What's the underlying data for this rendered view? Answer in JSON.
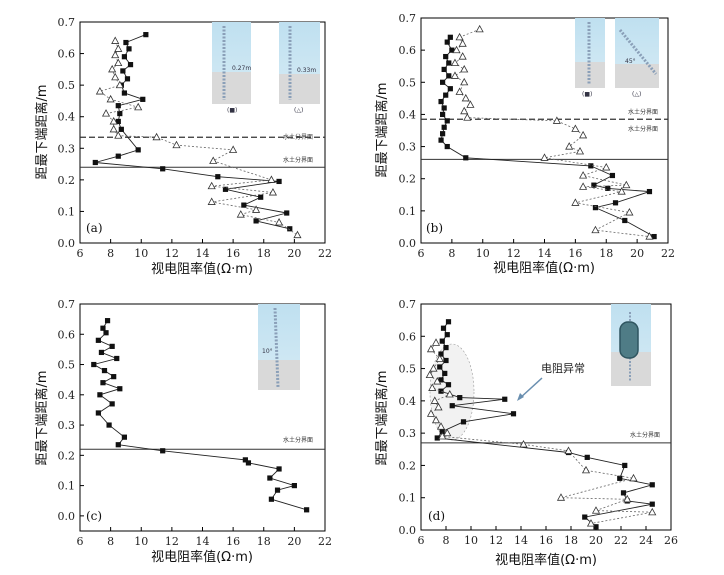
{
  "figure": {
    "x_axis_label": "视电阻率值(Ω·m)",
    "y_axis_label": "距最下端距离/m",
    "interface_label": "水土分界面"
  },
  "chart_data": [
    {
      "type": "line",
      "panel_label": "(a)",
      "xlim": [
        6,
        22
      ],
      "ylim": [
        0,
        0.7
      ],
      "xticks": [
        6,
        8,
        10,
        12,
        14,
        16,
        18,
        20,
        22
      ],
      "yticks": [
        0.0,
        0.1,
        0.2,
        0.3,
        0.4,
        0.5,
        0.6,
        0.7
      ],
      "xlabel": "视电阻率值(Ω·m)",
      "ylabel": "距最下端距离/m",
      "reference_lines": [
        {
          "y": 0.335,
          "style": "dashed",
          "label": "水土分界面"
        },
        {
          "y": 0.24,
          "style": "solid",
          "label": "水土分界面"
        }
      ],
      "series": [
        {
          "name": "■",
          "marker": "square",
          "x": [
            10.3,
            9.0,
            9.2,
            8.9,
            9.3,
            8.8,
            9.1,
            8.7,
            8.9,
            10.1,
            8.5,
            8.6,
            8.5,
            8.7,
            9.8,
            8.5,
            7.0,
            11.4,
            15.0,
            19.0,
            15.5,
            17.8,
            16.7,
            19.5,
            17.5,
            19.7
          ],
          "y": [
            0.66,
            0.635,
            0.615,
            0.59,
            0.565,
            0.545,
            0.52,
            0.5,
            0.475,
            0.455,
            0.435,
            0.41,
            0.385,
            0.36,
            0.295,
            0.275,
            0.255,
            0.235,
            0.21,
            0.195,
            0.17,
            0.145,
            0.12,
            0.095,
            0.07,
            0.045
          ]
        },
        {
          "name": "△",
          "marker": "triangle",
          "x": [
            8.3,
            8.5,
            8.3,
            8.5,
            8.1,
            8.3,
            8.6,
            7.3,
            8.0,
            9.8,
            7.7,
            8.2,
            8.2,
            8.5,
            11.0,
            12.3,
            16.0,
            14.7,
            18.5,
            14.6,
            18.6,
            14.6,
            17.5,
            16.5,
            19.0,
            20.2
          ],
          "y": [
            0.64,
            0.615,
            0.595,
            0.57,
            0.55,
            0.525,
            0.5,
            0.48,
            0.455,
            0.43,
            0.41,
            0.385,
            0.36,
            0.34,
            0.335,
            0.31,
            0.295,
            0.26,
            0.2,
            0.18,
            0.16,
            0.13,
            0.105,
            0.09,
            0.065,
            0.025
          ]
        }
      ],
      "inset_labels": [
        "0.27m",
        "0.33m",
        "(■)",
        "(△)"
      ]
    },
    {
      "type": "line",
      "panel_label": "(b)",
      "xlim": [
        6,
        22
      ],
      "ylim": [
        0,
        0.7
      ],
      "xticks": [
        6,
        8,
        10,
        12,
        14,
        16,
        18,
        20,
        22
      ],
      "yticks": [
        0.0,
        0.1,
        0.2,
        0.3,
        0.4,
        0.5,
        0.6,
        0.7
      ],
      "xlabel": "视电阻率值(Ω·m)",
      "ylabel": "距最下端距离/m",
      "reference_lines": [
        {
          "y": 0.385,
          "style": "dashed",
          "label": "水土分界面"
        },
        {
          "y": 0.26,
          "style": "solid",
          "label": "水土分界面"
        }
      ],
      "series": [
        {
          "name": "■",
          "marker": "square",
          "x": [
            7.9,
            7.7,
            8.0,
            7.6,
            7.8,
            7.5,
            7.8,
            7.4,
            7.9,
            7.6,
            7.3,
            7.5,
            7.4,
            7.7,
            7.5,
            7.4,
            7.3,
            7.7,
            8.9,
            17.0,
            18.4,
            17.2,
            18.1,
            20.8,
            18.6,
            17.3,
            19.2,
            21.1
          ],
          "y": [
            0.64,
            0.625,
            0.6,
            0.58,
            0.56,
            0.54,
            0.52,
            0.5,
            0.48,
            0.46,
            0.44,
            0.42,
            0.4,
            0.38,
            0.36,
            0.34,
            0.32,
            0.3,
            0.265,
            0.24,
            0.21,
            0.18,
            0.17,
            0.16,
            0.125,
            0.11,
            0.07,
            0.02
          ]
        },
        {
          "name": "△",
          "marker": "triangle",
          "x": [
            9.8,
            8.5,
            8.7,
            8.3,
            8.7,
            8.2,
            8.8,
            8.2,
            8.8,
            8.5,
            8.9,
            9.2,
            8.8,
            9.0,
            14.8,
            16.0,
            16.5,
            15.6,
            16.3,
            14.0,
            18.0,
            16.5,
            19.3,
            16.5,
            19.0,
            16.0,
            19.5,
            17.3,
            20.8
          ],
          "y": [
            0.665,
            0.64,
            0.62,
            0.6,
            0.58,
            0.56,
            0.54,
            0.52,
            0.5,
            0.47,
            0.45,
            0.43,
            0.41,
            0.39,
            0.38,
            0.355,
            0.335,
            0.3,
            0.285,
            0.265,
            0.235,
            0.21,
            0.18,
            0.175,
            0.16,
            0.125,
            0.095,
            0.04,
            0.02
          ]
        }
      ],
      "inset_labels": [
        "(■)",
        "45°",
        "(△)"
      ]
    },
    {
      "type": "line",
      "panel_label": "(c)",
      "xlim": [
        6,
        22
      ],
      "ylim": [
        -0.05,
        0.7
      ],
      "xticks": [
        6,
        8,
        10,
        12,
        14,
        16,
        18,
        20,
        22
      ],
      "yticks": [
        0.0,
        0.1,
        0.2,
        0.3,
        0.4,
        0.5,
        0.6,
        0.7
      ],
      "xlabel": "视电阻率值(Ω·m)",
      "ylabel": "距最下端距离/m",
      "reference_lines": [
        {
          "y": 0.22,
          "style": "solid",
          "label": "水土分界面"
        }
      ],
      "series": [
        {
          "name": "■",
          "marker": "square",
          "x": [
            7.8,
            7.5,
            7.7,
            7.2,
            8.1,
            7.4,
            8.4,
            6.9,
            7.6,
            8.2,
            7.5,
            8.6,
            7.3,
            8.1,
            7.2,
            7.9,
            8.9,
            8.5,
            11.4,
            16.8,
            17.0,
            19.0,
            18.4,
            20.0,
            18.9,
            18.5,
            20.8
          ],
          "y": [
            0.645,
            0.62,
            0.605,
            0.58,
            0.56,
            0.54,
            0.52,
            0.5,
            0.48,
            0.46,
            0.44,
            0.42,
            0.4,
            0.37,
            0.34,
            0.3,
            0.26,
            0.235,
            0.215,
            0.185,
            0.175,
            0.155,
            0.125,
            0.1,
            0.085,
            0.055,
            0.02
          ]
        }
      ],
      "inset_labels": [
        "10°"
      ]
    },
    {
      "type": "line",
      "panel_label": "(d)",
      "xlim": [
        6,
        26
      ],
      "ylim": [
        0,
        0.7
      ],
      "xticks": [
        6,
        8,
        10,
        12,
        14,
        16,
        18,
        20,
        22,
        24,
        26
      ],
      "yticks": [
        0.0,
        0.1,
        0.2,
        0.3,
        0.4,
        0.5,
        0.6,
        0.7
      ],
      "xlabel": "视电阻率值(Ω·m)",
      "ylabel": "距最下端距离/m",
      "reference_lines": [
        {
          "y": 0.27,
          "style": "solid",
          "label": "水土分界面"
        }
      ],
      "annotations": [
        {
          "text": "电阻异常",
          "x": 13.5,
          "y": 0.47
        }
      ],
      "series": [
        {
          "name": "■",
          "marker": "square",
          "x": [
            8.2,
            7.8,
            8.1,
            7.7,
            8.0,
            7.6,
            8.0,
            7.5,
            7.9,
            7.6,
            8.2,
            7.6,
            9.1,
            12.7,
            8.5,
            13.4,
            9.4,
            7.7,
            7.3,
            17.8,
            19.3,
            22.3,
            21.9,
            24.5,
            22.2,
            22.5,
            24.5,
            19.1,
            20.0
          ],
          "y": [
            0.645,
            0.625,
            0.605,
            0.585,
            0.565,
            0.545,
            0.525,
            0.505,
            0.485,
            0.465,
            0.45,
            0.43,
            0.41,
            0.405,
            0.385,
            0.36,
            0.335,
            0.305,
            0.285,
            0.24,
            0.225,
            0.2,
            0.16,
            0.14,
            0.115,
            0.09,
            0.08,
            0.04,
            0.01
          ]
        },
        {
          "name": "△",
          "marker": "triangle",
          "x": [
            7.2,
            6.8,
            7.5,
            7.0,
            6.7,
            7.3,
            6.9,
            8.3,
            7.1,
            7.4,
            6.8,
            7.2,
            7.6,
            8.1,
            7.7,
            14.2,
            17.8,
            19.2,
            23.0,
            17.2,
            22.5,
            20.0,
            24.5,
            19.6
          ],
          "y": [
            0.58,
            0.56,
            0.53,
            0.5,
            0.48,
            0.46,
            0.44,
            0.42,
            0.4,
            0.38,
            0.36,
            0.34,
            0.32,
            0.3,
            0.29,
            0.265,
            0.245,
            0.185,
            0.16,
            0.1,
            0.095,
            0.06,
            0.055,
            0.02
          ]
        }
      ],
      "inset_labels": []
    }
  ]
}
